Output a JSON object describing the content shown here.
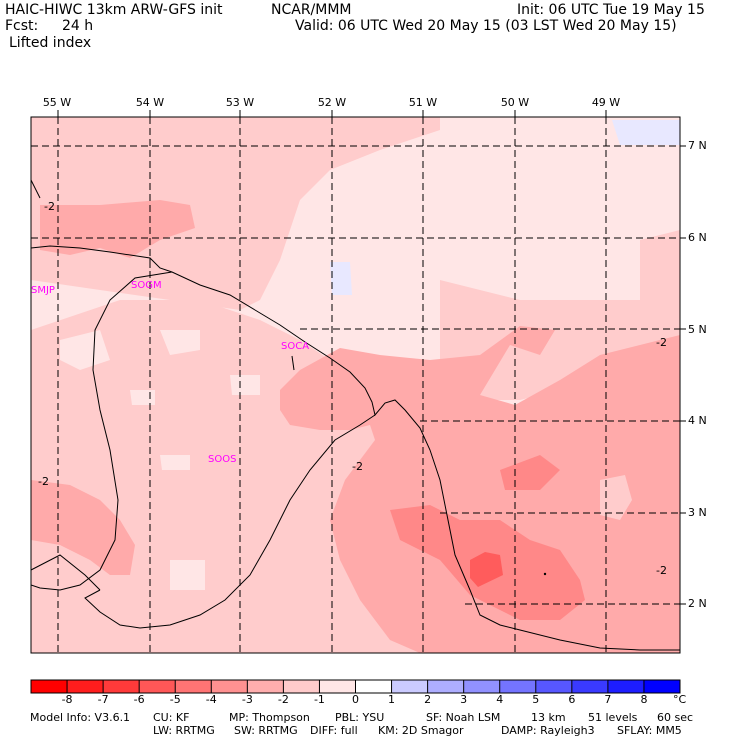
{
  "header": {
    "model": "HAIC-HIWC 13km ARW-GFS init",
    "org": "NCAR/MMM",
    "init": "Init: 06 UTC Tue 19 May 15",
    "fcst_label": "Fcst:",
    "fcst_value": "24 h",
    "valid": "Valid: 06 UTC Wed 20 May 15 (03 LST Wed 20 May 15)",
    "field": "Lifted index"
  },
  "map": {
    "lon_labels": [
      "55 W",
      "54 W",
      "53 W",
      "52 W",
      "51 W",
      "50 W",
      "49 W"
    ],
    "lat_labels": [
      "7 N",
      "6 N",
      "5 N",
      "4 N",
      "3 N",
      "2 N"
    ],
    "contour_labels": [
      "-2",
      "-2",
      "-2",
      "-2",
      "-2"
    ],
    "stations": [
      "SMJP",
      "SOGM",
      "SOCA",
      "SOOS"
    ],
    "colors": {
      "bg": "#ffe6e6",
      "light": "#ffcccc",
      "mid": "#ffaaaa",
      "strong": "#ff8888",
      "strongest": "#ff5c5c",
      "blue": "#e8e8ff",
      "station": "#ff00ff"
    }
  },
  "colorbar": {
    "ticks": [
      "-8",
      "-7",
      "-6",
      "-5",
      "-4",
      "-3",
      "-2",
      "-1",
      "0",
      "1",
      "2",
      "3",
      "4",
      "5",
      "6",
      "7",
      "8"
    ],
    "unit": "°C",
    "colors": [
      "#ff0000",
      "#ff1d1d",
      "#ff3a3a",
      "#ff5757",
      "#ff7474",
      "#ff9191",
      "#ffaeae",
      "#ffcbcb",
      "#ffe6e6",
      "#ffffff",
      "#cbcbff",
      "#aeaeff",
      "#9191ff",
      "#7474ff",
      "#5757ff",
      "#3a3aff",
      "#1d1dff",
      "#0000ff"
    ]
  },
  "footer": {
    "line1": [
      "Model Info: V3.6.1",
      "CU: KF",
      "MP: Thompson",
      "PBL: YSU",
      "SF: Noah LSM",
      "13 km",
      "51 levels",
      "60 sec"
    ],
    "line2": [
      "LW: RRTMG",
      "SW: RRTMG",
      "DIFF: full",
      "KM: 2D Smagor",
      "DAMP: Rayleigh3",
      "SFLAY: MM5"
    ]
  }
}
